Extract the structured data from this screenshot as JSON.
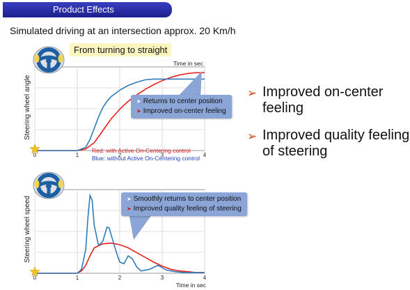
{
  "header": {
    "tab_label": "Product Effects"
  },
  "subtitle": "Simulated driving at an intersection approx. 20 Km/h",
  "colors": {
    "red_line": "#e8201c",
    "blue_line": "#2e7bb9",
    "tab": "#262aa5",
    "callout": "#8aa5d6",
    "note": "#fbf5c0"
  },
  "top_chart": {
    "note": "From turning to straight",
    "callout": [
      "Returns to center position",
      "Improved on-center feeling"
    ],
    "legend": {
      "red": "Red: with Active On-Centering control",
      "blue": "Blue: without Active On-Centering control"
    },
    "icons": [
      "steering-wheel-icon",
      "star-icon"
    ]
  },
  "bottom_chart": {
    "callout": [
      "Smoothly returns to center position",
      "Improved quality feeling of steering"
    ],
    "icons": [
      "steering-wheel-icon",
      "star-icon"
    ]
  },
  "effects": [
    {
      "mark": "➢",
      "text": "Improved on-center feeling"
    },
    {
      "mark": "➢",
      "text": "Improved quality feeling of steering"
    }
  ],
  "chart_data": [
    {
      "type": "line",
      "title": "",
      "xlabel": "Time in sec",
      "ylabel": "Steering wheel angle",
      "xlim": [
        0,
        4
      ],
      "x_ticks": [
        "0",
        "1",
        "2",
        "3",
        "4"
      ],
      "grid": true,
      "series": [
        {
          "name": "Red: with Active On-Centering control",
          "color": "#e8201c",
          "x": [
            0,
            0.5,
            1.0,
            1.2,
            1.4,
            1.6,
            1.8,
            2.0,
            2.2,
            2.4,
            2.6,
            2.8,
            3.0,
            3.2,
            3.4,
            3.6,
            3.8,
            4.0
          ],
          "y": [
            0.0,
            0.0,
            0.0,
            0.02,
            0.1,
            0.25,
            0.4,
            0.52,
            0.62,
            0.7,
            0.77,
            0.83,
            0.88,
            0.92,
            0.95,
            0.97,
            0.98,
            0.98
          ]
        },
        {
          "name": "Blue: without Active On-Centering control",
          "color": "#2e7bb9",
          "x": [
            0,
            0.5,
            1.0,
            1.2,
            1.3,
            1.4,
            1.5,
            1.6,
            1.7,
            1.8,
            2.0,
            2.2,
            2.4,
            2.6,
            2.8,
            3.0,
            3.2,
            3.4,
            3.6,
            3.8,
            4.0
          ],
          "y": [
            0.0,
            0.0,
            0.0,
            0.04,
            0.14,
            0.28,
            0.42,
            0.54,
            0.62,
            0.68,
            0.76,
            0.82,
            0.86,
            0.89,
            0.9,
            0.9,
            0.9,
            0.9,
            0.9,
            0.9,
            0.9
          ]
        }
      ]
    },
    {
      "type": "line",
      "title": "",
      "xlabel": "Time in sec",
      "ylabel": "Steering wheel speed",
      "xlim": [
        0,
        4
      ],
      "x_ticks": [
        "0",
        "1",
        "2",
        "3",
        "4"
      ],
      "grid": true,
      "series": [
        {
          "name": "Red: with Active On-Centering control",
          "color": "#e8201c",
          "x": [
            0,
            1.0,
            1.1,
            1.2,
            1.3,
            1.4,
            1.6,
            1.8,
            2.0,
            2.2,
            2.4,
            2.6,
            2.8,
            3.0,
            3.2,
            3.4,
            3.6,
            3.8,
            4.0
          ],
          "y": [
            0.0,
            0.0,
            0.03,
            0.1,
            0.22,
            0.32,
            0.37,
            0.38,
            0.36,
            0.32,
            0.26,
            0.2,
            0.14,
            0.09,
            0.05,
            0.03,
            0.02,
            0.01,
            0.01
          ]
        },
        {
          "name": "Blue: without Active On-Centering control",
          "color": "#2e7bb9",
          "x": [
            0,
            1.0,
            1.1,
            1.2,
            1.25,
            1.3,
            1.35,
            1.4,
            1.5,
            1.6,
            1.7,
            1.75,
            1.8,
            1.9,
            2.0,
            2.1,
            2.2,
            2.3,
            2.4,
            2.5,
            2.7,
            2.9,
            3.1,
            3.3,
            3.5,
            4.0
          ],
          "y": [
            0.0,
            0.0,
            0.05,
            0.3,
            0.7,
            0.98,
            0.92,
            0.6,
            0.35,
            0.4,
            0.58,
            0.57,
            0.48,
            0.3,
            0.14,
            0.12,
            0.22,
            0.18,
            0.08,
            0.03,
            0.05,
            0.1,
            0.04,
            0.02,
            0.01,
            0.01
          ]
        }
      ]
    }
  ]
}
